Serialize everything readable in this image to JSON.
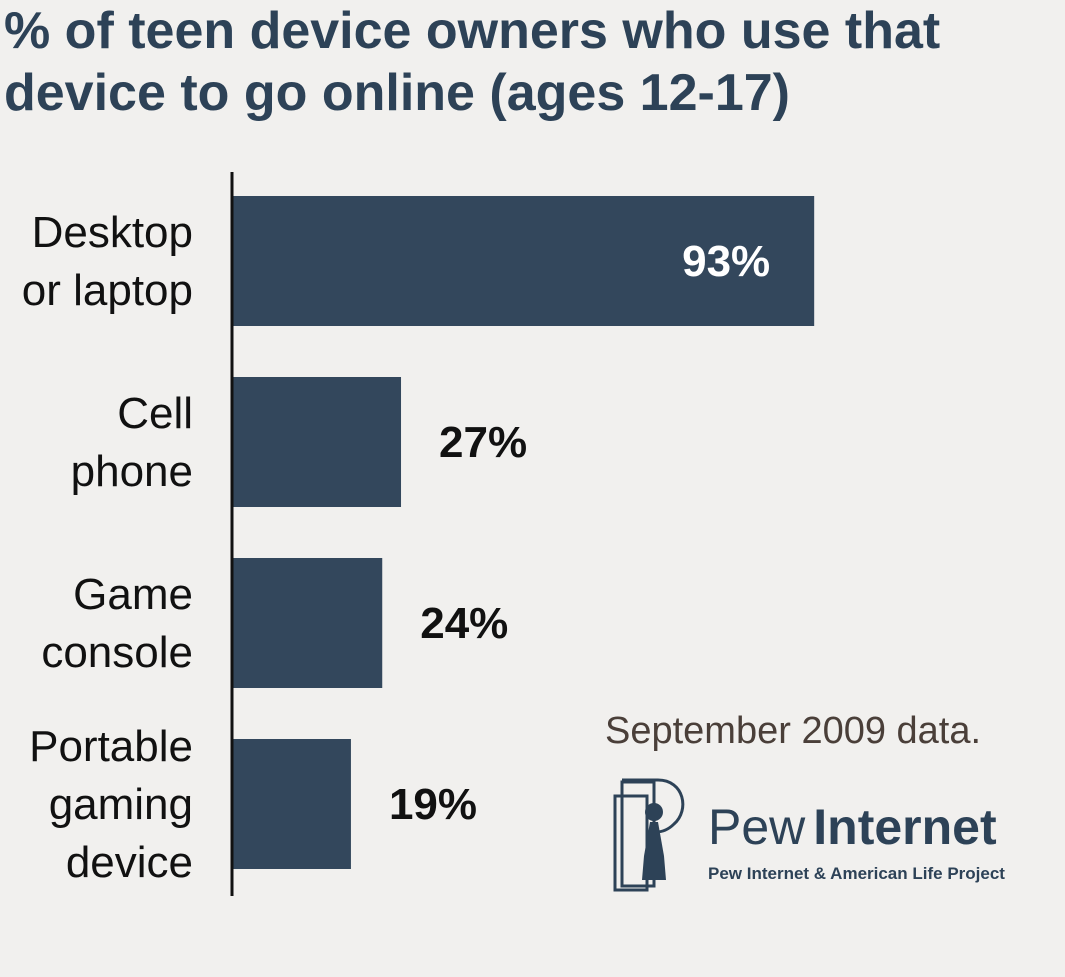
{
  "chart_data": {
    "type": "bar",
    "orientation": "horizontal",
    "title": "% of teen device owners who use that device to go online (ages 12-17)",
    "categories": [
      [
        "Desktop",
        "or laptop"
      ],
      [
        "Cell",
        "phone"
      ],
      [
        "Game",
        "console"
      ],
      [
        "Portable",
        "gaming",
        "device"
      ]
    ],
    "values": [
      93,
      27,
      24,
      19
    ],
    "value_labels": [
      "93%",
      "27%",
      "24%",
      "19%"
    ],
    "xlim": [
      0,
      100
    ],
    "xlabel": "",
    "ylabel": "",
    "grid": false
  },
  "note": "September 2009 data.",
  "logo": {
    "word1": "Pew",
    "word2": "Internet",
    "subtitle": "Pew Internet & American Life Project"
  },
  "colors": {
    "bar": "#33475c",
    "title": "#2d4257",
    "background": "#f1f0ee",
    "label_inside": "#ffffff",
    "label_outside": "#111111",
    "note": "#4a3f39"
  }
}
